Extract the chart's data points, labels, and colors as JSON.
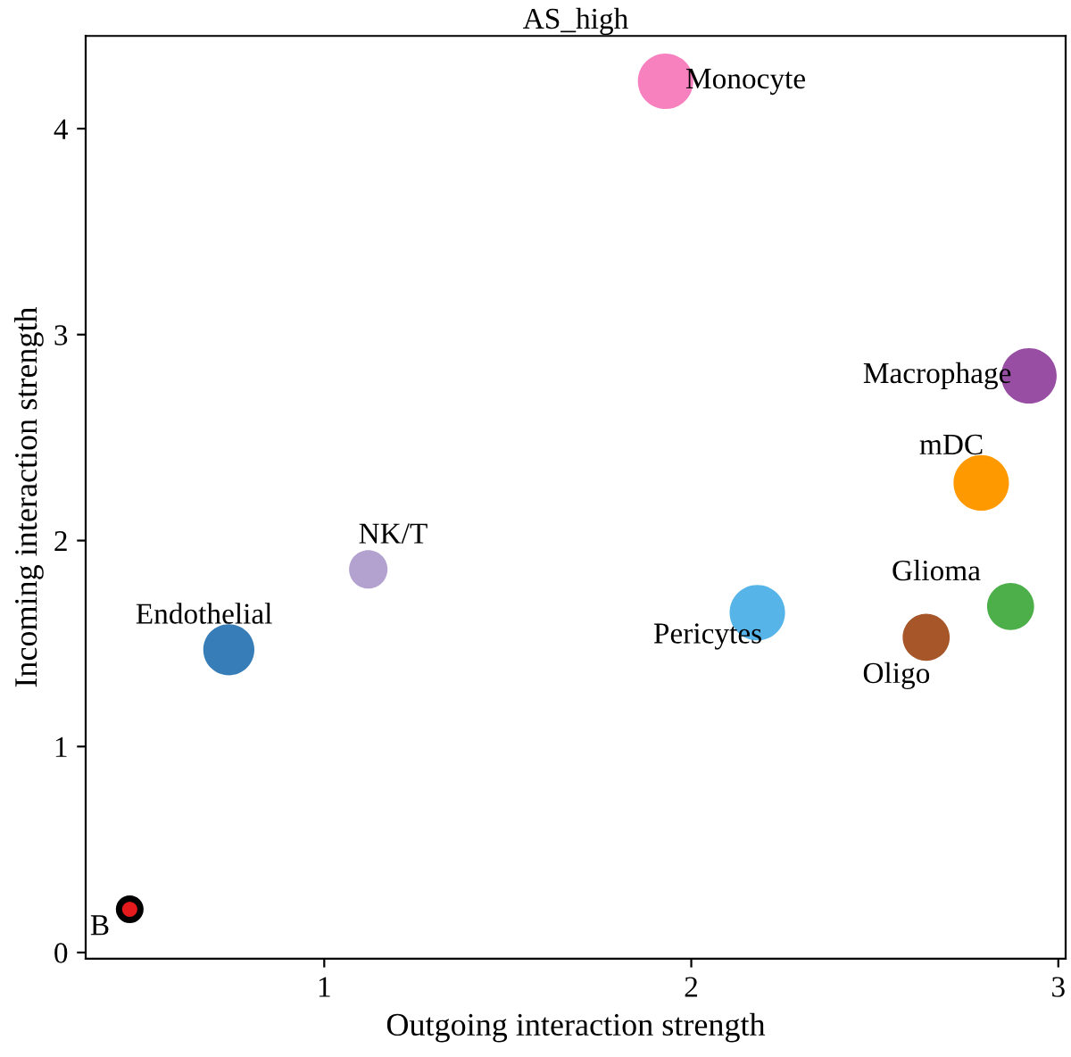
{
  "chart_data": {
    "type": "scatter",
    "title": "AS_high",
    "xlabel": "Outgoing interaction strength",
    "ylabel": "Incoming interaction strength",
    "xlim": [
      0.35,
      3.02
    ],
    "ylim": [
      -0.03,
      4.45
    ],
    "xticks": [
      1,
      2,
      3
    ],
    "yticks": [
      0,
      1,
      2,
      3,
      4
    ],
    "grid": false,
    "marker": "circle",
    "series": [
      {
        "name": "Monocyte",
        "color": "#f781bf",
        "x": [
          1.93
        ],
        "values": [
          4.23
        ],
        "sizes": [
          1
        ]
      },
      {
        "name": "Macrophage",
        "color": "#984ea3",
        "x": [
          2.92
        ],
        "values": [
          2.8
        ],
        "sizes": [
          1
        ]
      },
      {
        "name": "mDC",
        "color": "#ff9900",
        "x": [
          2.79
        ],
        "values": [
          2.28
        ],
        "sizes": [
          1
        ]
      },
      {
        "name": "Glioma",
        "color": "#4daf4a",
        "x": [
          2.87
        ],
        "values": [
          1.68
        ],
        "sizes": [
          0.72
        ]
      },
      {
        "name": "Oligo",
        "color": "#a65628",
        "x": [
          2.64
        ],
        "values": [
          1.53
        ],
        "sizes": [
          0.72
        ]
      },
      {
        "name": "Pericytes",
        "color": "#56b4e9",
        "x": [
          2.18
        ],
        "values": [
          1.65
        ],
        "sizes": [
          1
        ]
      },
      {
        "name": "NK/T",
        "color": "#b3a2d0",
        "x": [
          1.12
        ],
        "values": [
          1.86
        ],
        "sizes": [
          0.48
        ]
      },
      {
        "name": "Endothelial",
        "color": "#377eb8",
        "x": [
          0.74
        ],
        "values": [
          1.47
        ],
        "sizes": [
          0.85
        ]
      },
      {
        "name": "B",
        "color": "#e41a1c",
        "x": [
          0.47
        ],
        "values": [
          0.21
        ],
        "sizes": [
          0.15
        ]
      }
    ]
  }
}
